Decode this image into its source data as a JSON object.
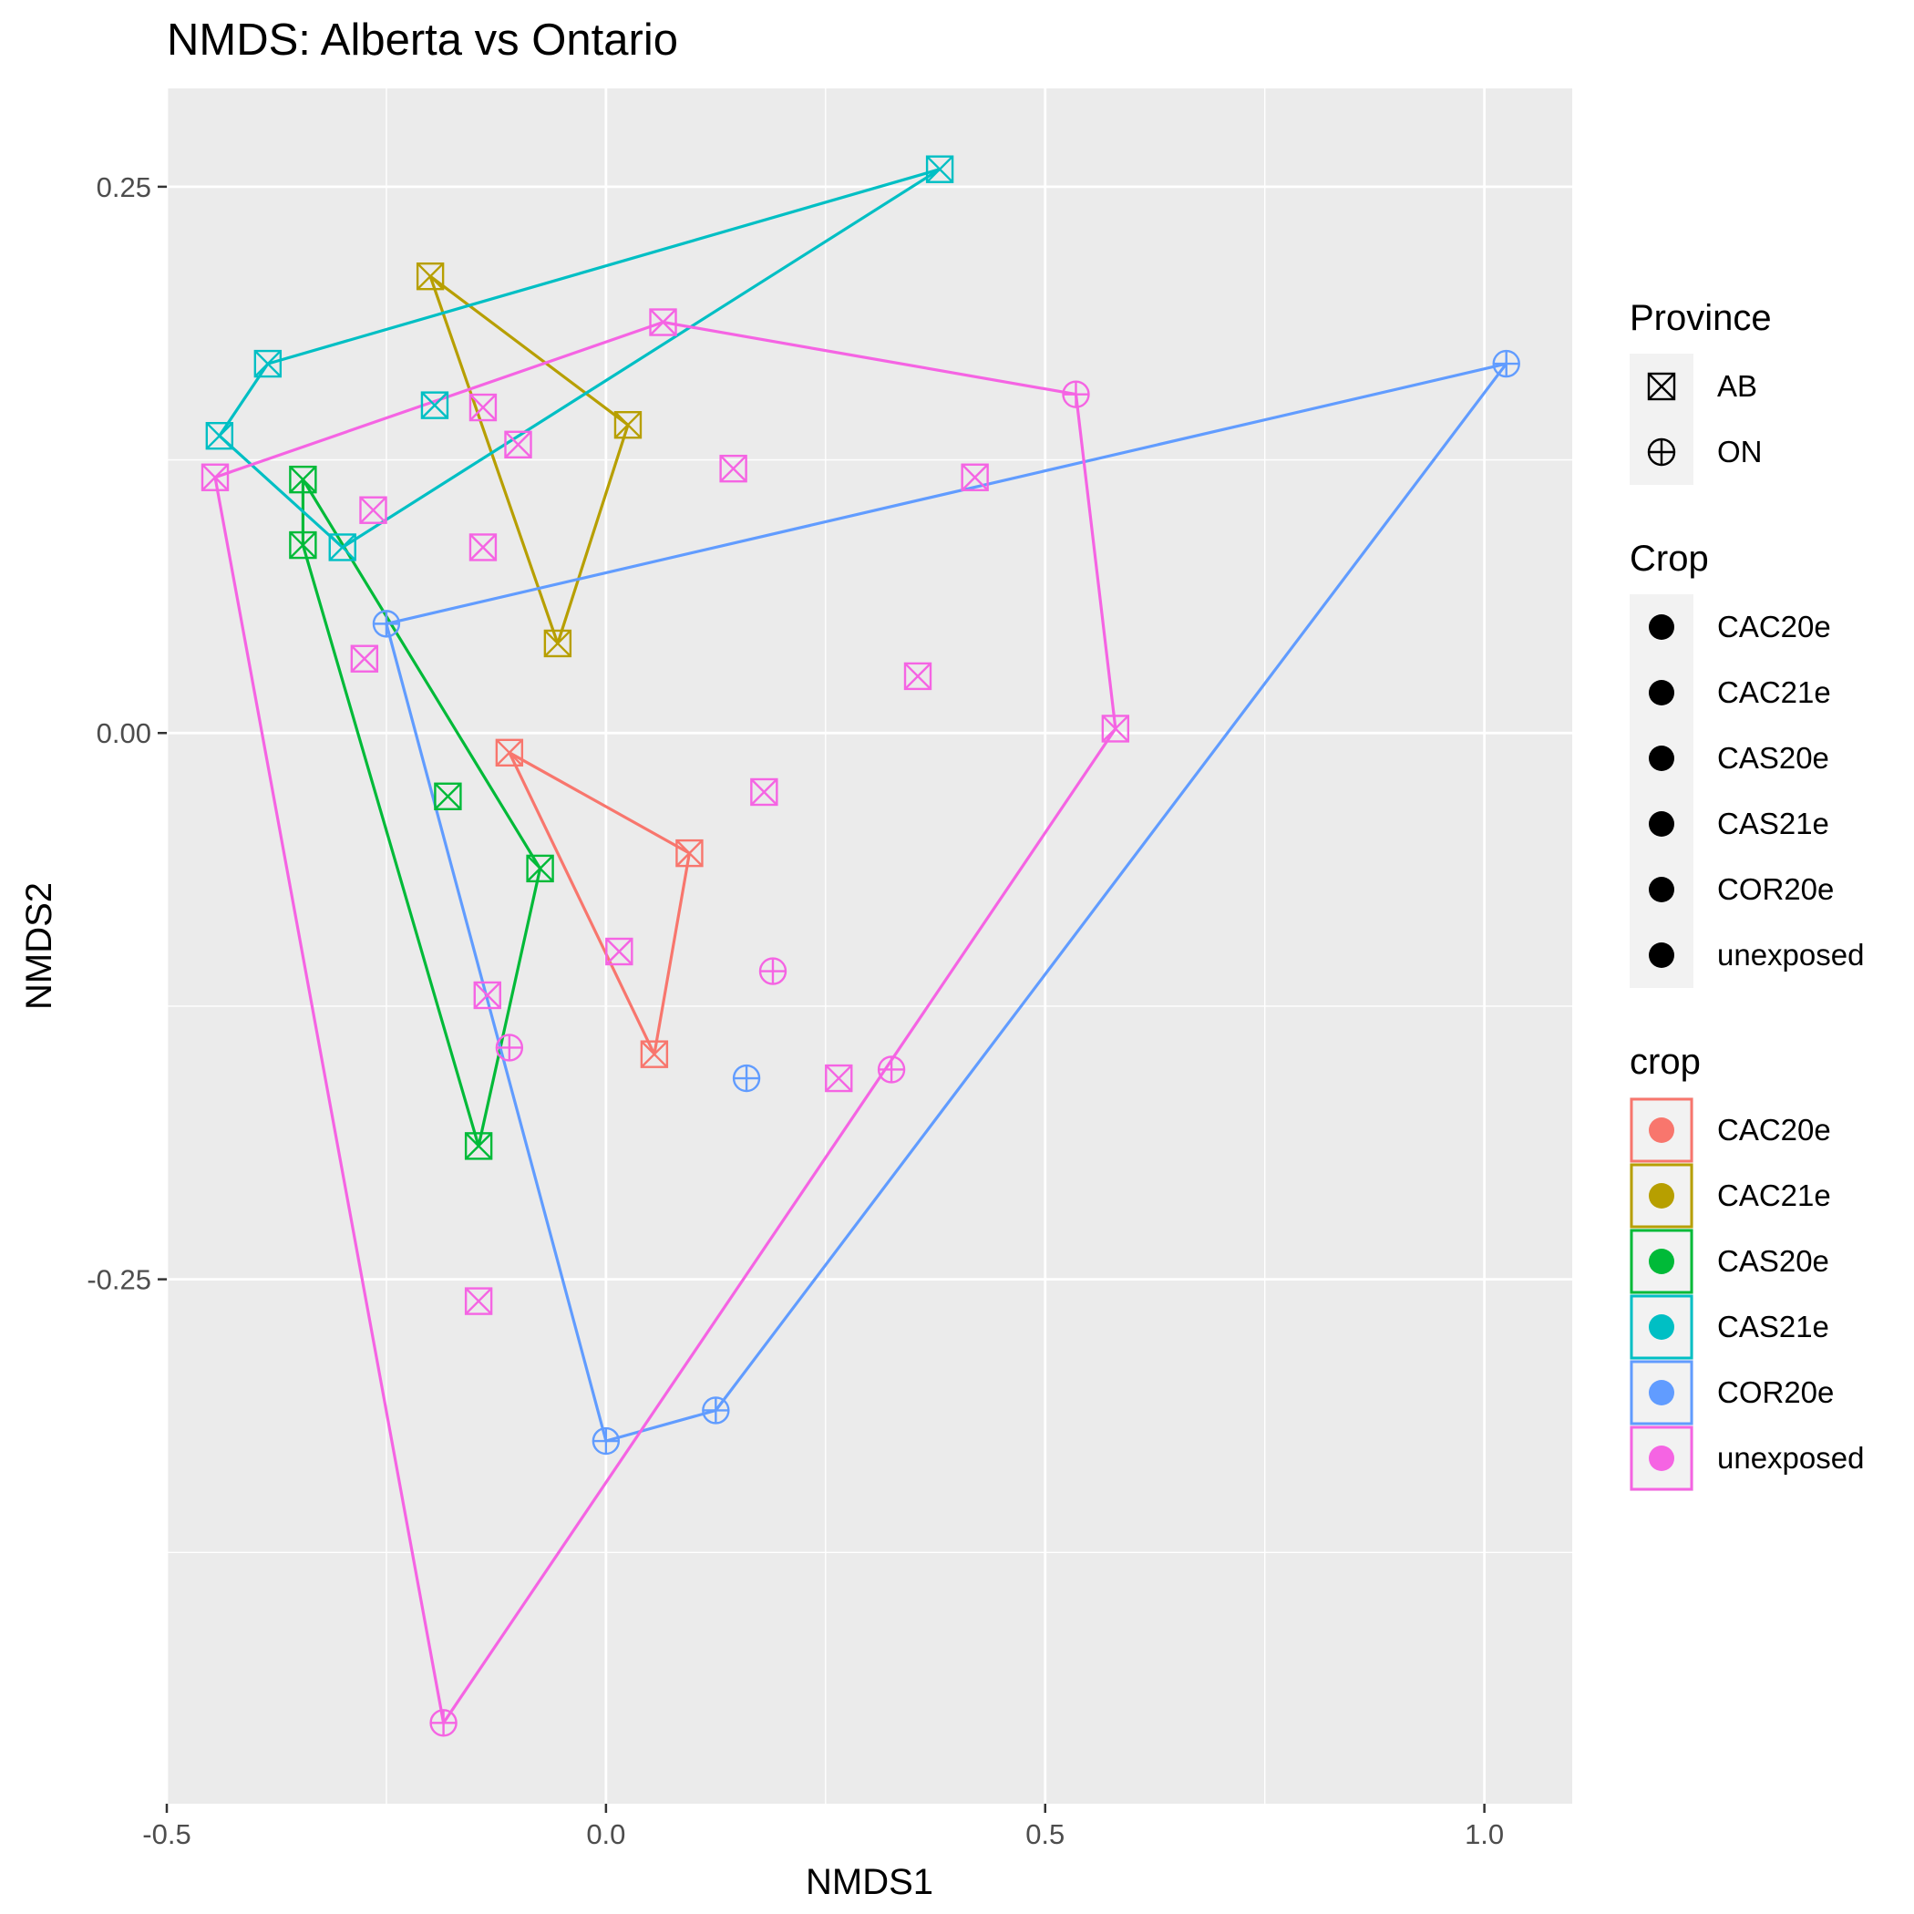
{
  "chart_data": {
    "type": "scatter",
    "title": "NMDS: Alberta vs Ontario",
    "xlabel": "NMDS1",
    "ylabel": "NMDS2",
    "xlim": [
      -0.5,
      1.1
    ],
    "ylim": [
      -0.49,
      0.295
    ],
    "x_ticks": [
      -0.5,
      0.0,
      0.5,
      1.0
    ],
    "x_tick_labels": [
      "-0.5",
      "0.0",
      "0.5",
      "1.0"
    ],
    "y_ticks": [
      -0.25,
      0.0,
      0.25
    ],
    "y_tick_labels": [
      "-0.25",
      "0.00",
      "0.25"
    ],
    "grid": true,
    "legend_position": "right",
    "colors": {
      "CAC20e": "#F8766D",
      "CAC21e": "#B79F00",
      "CAS20e": "#00BA38",
      "CAS21e": "#00BFC4",
      "COR20e": "#619CFF",
      "unexposed": "#F564E3"
    },
    "legends": [
      {
        "title": "Province",
        "kind": "shape",
        "items": [
          {
            "label": "AB",
            "shape": "boxed-x"
          },
          {
            "label": "ON",
            "shape": "circled-plus"
          }
        ]
      },
      {
        "title": "Crop",
        "kind": "dot",
        "items": [
          {
            "label": "CAC20e"
          },
          {
            "label": "CAC21e"
          },
          {
            "label": "CAS20e"
          },
          {
            "label": "CAS21e"
          },
          {
            "label": "COR20e"
          },
          {
            "label": "unexposed"
          }
        ]
      },
      {
        "title": "crop",
        "kind": "color",
        "items": [
          {
            "label": "CAC20e"
          },
          {
            "label": "CAC21e"
          },
          {
            "label": "CAS20e"
          },
          {
            "label": "CAS21e"
          },
          {
            "label": "COR20e"
          },
          {
            "label": "unexposed"
          }
        ]
      }
    ],
    "series": [
      {
        "name": "CAC20e",
        "points": [
          {
            "x": -0.11,
            "y": -0.009,
            "province": "AB"
          },
          {
            "x": 0.095,
            "y": -0.055,
            "province": "AB"
          },
          {
            "x": 0.055,
            "y": -0.147,
            "province": "AB"
          }
        ],
        "hull": [
          [
            -0.11,
            -0.009
          ],
          [
            0.095,
            -0.055
          ],
          [
            0.055,
            -0.147
          ]
        ]
      },
      {
        "name": "CAC21e",
        "points": [
          {
            "x": -0.2,
            "y": 0.209,
            "province": "AB"
          },
          {
            "x": 0.025,
            "y": 0.141,
            "province": "AB"
          },
          {
            "x": -0.055,
            "y": 0.041,
            "province": "AB"
          }
        ],
        "hull": [
          [
            -0.2,
            0.209
          ],
          [
            0.025,
            0.141
          ],
          [
            -0.055,
            0.041
          ]
        ]
      },
      {
        "name": "CAS20e",
        "points": [
          {
            "x": -0.345,
            "y": 0.116,
            "province": "AB"
          },
          {
            "x": -0.345,
            "y": 0.086,
            "province": "AB"
          },
          {
            "x": -0.18,
            "y": -0.029,
            "province": "AB"
          },
          {
            "x": -0.075,
            "y": -0.062,
            "province": "AB"
          },
          {
            "x": -0.145,
            "y": -0.189,
            "province": "AB"
          }
        ],
        "hull": [
          [
            -0.345,
            0.116
          ],
          [
            -0.075,
            -0.062
          ],
          [
            -0.145,
            -0.189
          ],
          [
            -0.345,
            0.086
          ]
        ]
      },
      {
        "name": "CAS21e",
        "points": [
          {
            "x": 0.38,
            "y": 0.258,
            "province": "AB"
          },
          {
            "x": -0.385,
            "y": 0.169,
            "province": "AB"
          },
          {
            "x": -0.195,
            "y": 0.15,
            "province": "AB"
          },
          {
            "x": -0.44,
            "y": 0.136,
            "province": "AB"
          },
          {
            "x": -0.3,
            "y": 0.085,
            "province": "AB"
          }
        ],
        "hull": [
          [
            0.38,
            0.258
          ],
          [
            -0.385,
            0.169
          ],
          [
            -0.44,
            0.136
          ],
          [
            -0.3,
            0.085
          ]
        ]
      },
      {
        "name": "COR20e",
        "points": [
          {
            "x": 1.025,
            "y": 0.169,
            "province": "ON"
          },
          {
            "x": -0.25,
            "y": 0.05,
            "province": "ON"
          },
          {
            "x": 0.16,
            "y": -0.158,
            "province": "ON"
          },
          {
            "x": 0.125,
            "y": -0.31,
            "province": "ON"
          },
          {
            "x": 0.0,
            "y": -0.324,
            "province": "ON"
          }
        ],
        "hull": [
          [
            1.025,
            0.169
          ],
          [
            -0.25,
            0.05
          ],
          [
            0.0,
            -0.324
          ],
          [
            0.125,
            -0.31
          ]
        ]
      },
      {
        "name": "unexposed",
        "points": [
          {
            "x": 0.065,
            "y": 0.188,
            "province": "AB"
          },
          {
            "x": -0.14,
            "y": 0.149,
            "province": "AB"
          },
          {
            "x": -0.1,
            "y": 0.132,
            "province": "AB"
          },
          {
            "x": 0.145,
            "y": 0.121,
            "province": "AB"
          },
          {
            "x": 0.42,
            "y": 0.117,
            "province": "AB"
          },
          {
            "x": -0.445,
            "y": 0.117,
            "province": "AB"
          },
          {
            "x": -0.265,
            "y": 0.102,
            "province": "AB"
          },
          {
            "x": -0.14,
            "y": 0.085,
            "province": "AB"
          },
          {
            "x": -0.275,
            "y": 0.034,
            "province": "AB"
          },
          {
            "x": 0.355,
            "y": 0.026,
            "province": "AB"
          },
          {
            "x": 0.58,
            "y": 0.002,
            "province": "AB"
          },
          {
            "x": 0.18,
            "y": -0.027,
            "province": "AB"
          },
          {
            "x": 0.015,
            "y": -0.1,
            "province": "AB"
          },
          {
            "x": -0.135,
            "y": -0.12,
            "province": "AB"
          },
          {
            "x": 0.265,
            "y": -0.158,
            "province": "AB"
          },
          {
            "x": -0.145,
            "y": -0.26,
            "province": "AB"
          },
          {
            "x": 0.535,
            "y": 0.155,
            "province": "ON"
          },
          {
            "x": 0.19,
            "y": -0.109,
            "province": "ON"
          },
          {
            "x": -0.11,
            "y": -0.144,
            "province": "ON"
          },
          {
            "x": 0.325,
            "y": -0.154,
            "province": "ON"
          },
          {
            "x": -0.185,
            "y": -0.453,
            "province": "ON"
          }
        ],
        "hull": [
          [
            0.065,
            0.188
          ],
          [
            0.535,
            0.155
          ],
          [
            0.58,
            0.002
          ],
          [
            -0.185,
            -0.453
          ],
          [
            -0.445,
            0.117
          ]
        ]
      }
    ]
  }
}
